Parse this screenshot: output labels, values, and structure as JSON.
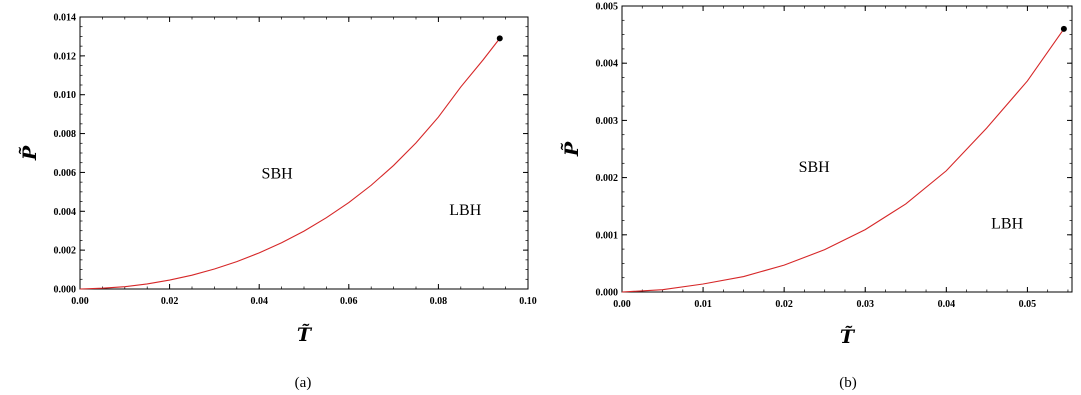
{
  "chart_data": [
    {
      "type": "line",
      "caption": "(a)",
      "xlabel": "T̃",
      "ylabel": "P̃",
      "xlim": [
        0,
        0.1
      ],
      "ylim": [
        0,
        0.014
      ],
      "x_ticks": [
        "0.00",
        "0.02",
        "0.04",
        "0.06",
        "0.08",
        "0.10"
      ],
      "y_ticks": [
        "0.000",
        "0.002",
        "0.004",
        "0.006",
        "0.008",
        "0.010",
        "0.012",
        "0.014"
      ],
      "x_tick_values": [
        0,
        0.02,
        0.04,
        0.06,
        0.08,
        0.1
      ],
      "y_tick_values": [
        0,
        0.002,
        0.004,
        0.006,
        0.008,
        0.01,
        0.012,
        0.014
      ],
      "x_minor_step": 0.005,
      "y_minor_step": 0.0005,
      "line_color": "#d62728",
      "series": [
        {
          "x": [
            0,
            0.005,
            0.01,
            0.015,
            0.02,
            0.025,
            0.03,
            0.035,
            0.04,
            0.045,
            0.05,
            0.055,
            0.06,
            0.065,
            0.07,
            0.075,
            0.08,
            0.085,
            0.09,
            0.0937
          ],
          "y": [
            0,
            4e-05,
            0.00012,
            0.00026,
            0.00046,
            0.00071,
            0.00103,
            0.00141,
            0.00186,
            0.00238,
            0.00298,
            0.00367,
            0.00445,
            0.00534,
            0.00636,
            0.00752,
            0.00885,
            0.0104,
            0.0118,
            0.0129
          ]
        }
      ],
      "critical_point": {
        "x": 0.0937,
        "y": 0.0129
      },
      "annotations": [
        {
          "text": "SBH",
          "x": 0.044,
          "y": 0.0057
        },
        {
          "text": "LBH",
          "x": 0.086,
          "y": 0.0038
        }
      ]
    },
    {
      "type": "line",
      "caption": "(b)",
      "xlabel": "T̃",
      "ylabel": "P̃",
      "xlim": [
        0,
        0.0555
      ],
      "ylim": [
        0,
        0.005
      ],
      "x_ticks": [
        "0.00",
        "0.01",
        "0.02",
        "0.03",
        "0.04",
        "0.05"
      ],
      "y_ticks": [
        "0.000",
        "0.001",
        "0.002",
        "0.003",
        "0.004",
        "0.005"
      ],
      "x_tick_values": [
        0,
        0.01,
        0.02,
        0.03,
        0.04,
        0.05
      ],
      "y_tick_values": [
        0,
        0.001,
        0.002,
        0.003,
        0.004,
        0.005
      ],
      "x_minor_step": 0.0025,
      "y_minor_step": 0.00025,
      "line_color": "#d62728",
      "series": [
        {
          "x": [
            0,
            0.005,
            0.01,
            0.015,
            0.02,
            0.025,
            0.03,
            0.035,
            0.04,
            0.045,
            0.05,
            0.0545
          ],
          "y": [
            0,
            4e-05,
            0.00014,
            0.00027,
            0.00047,
            0.00074,
            0.00109,
            0.00154,
            0.00212,
            0.00287,
            0.00369,
            0.0046
          ]
        }
      ],
      "critical_point": {
        "x": 0.0545,
        "y": 0.0046
      },
      "annotations": [
        {
          "text": "SBH",
          "x": 0.0237,
          "y": 0.0021
        },
        {
          "text": "LBH",
          "x": 0.0475,
          "y": 0.00111
        }
      ]
    }
  ]
}
